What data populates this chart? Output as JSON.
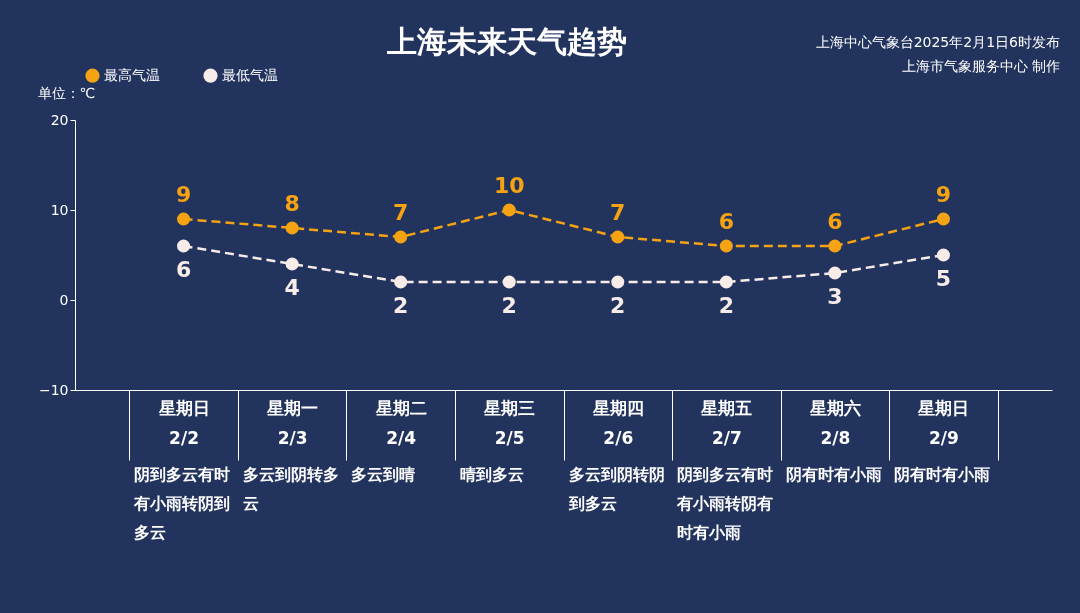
{
  "chart_data": {
    "type": "line",
    "title": "上海未来天气趋势",
    "ylabel": "单位：℃",
    "categories": [
      "星期日\n2/2",
      "星期一\n2/3",
      "星期二\n2/4",
      "星期三\n2/5",
      "星期四\n2/6",
      "星期五\n2/7",
      "星期六\n2/8",
      "星期日\n2/9"
    ],
    "series": [
      {
        "name": "最高气温",
        "color": "#f5a313",
        "values": [
          9,
          8,
          7,
          10,
          7,
          6,
          6,
          9
        ]
      },
      {
        "name": "最低气温",
        "color": "#f7ece8",
        "values": [
          6,
          4,
          2,
          2,
          2,
          2,
          3,
          5
        ]
      }
    ],
    "ylim": [
      -10,
      20
    ],
    "yticks": [
      -10,
      0,
      10,
      20
    ],
    "grid": false,
    "legend": "top left",
    "marker": "circle",
    "line_style": "dashed",
    "data_labels": true,
    "annotations": [
      "上海中心气象台2025年2月1日6时发布",
      "上海市气象服务中心 制作",
      "阴到多云有时有小雨转阴到多云",
      "多云到阴转多云",
      "多云到晴",
      "晴到多云",
      "多云到阴转阴到多云",
      "阴到多云有时有小雨转阴有时有小雨",
      "阴有时有小雨",
      "阴有时有小雨"
    ]
  }
}
